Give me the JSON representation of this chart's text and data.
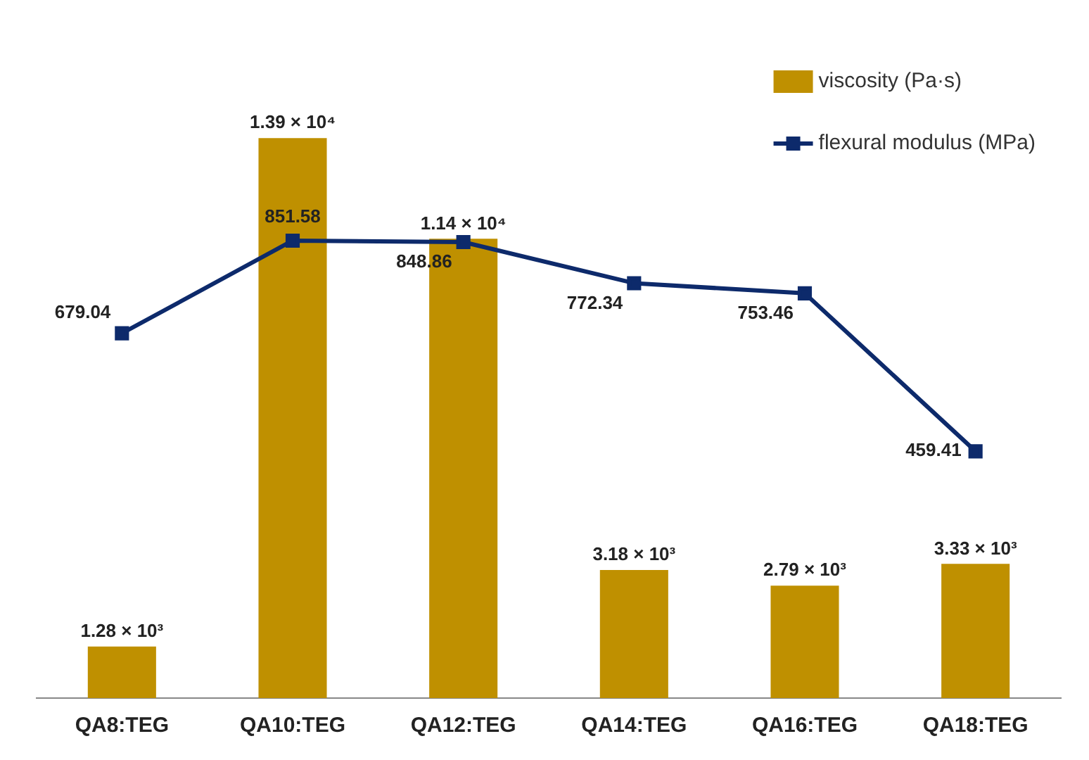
{
  "chart_data": {
    "type": "bar",
    "categories": [
      "QA8:TEG",
      "QA10:TEG",
      "QA12:TEG",
      "QA14:TEG",
      "QA16:TEG",
      "QA18:TEG"
    ],
    "series": [
      {
        "name": "viscosity (Pa·s)",
        "type": "bar",
        "color": "#bf9000",
        "values": [
          1280,
          13900,
          11400,
          3180,
          2790,
          3330
        ],
        "value_labels": [
          "1.28 × 10³",
          "1.39 × 10⁴",
          "1.14 × 10⁴",
          "3.18 × 10³",
          "2.79 × 10³",
          "3.33 × 10³"
        ]
      },
      {
        "name": "flexural modulus (MPa)",
        "type": "line",
        "axis": "y2",
        "color": "#0d2a6b",
        "marker": "square",
        "line_style": "solid",
        "values": [
          679.04,
          851.58,
          848.86,
          772.34,
          753.46,
          459.41
        ],
        "value_labels": [
          "679.04",
          "851.58",
          "848.86",
          "772.34",
          "753.46",
          "459.41"
        ]
      }
    ],
    "tick_labels": "x",
    "legend": "top right"
  }
}
